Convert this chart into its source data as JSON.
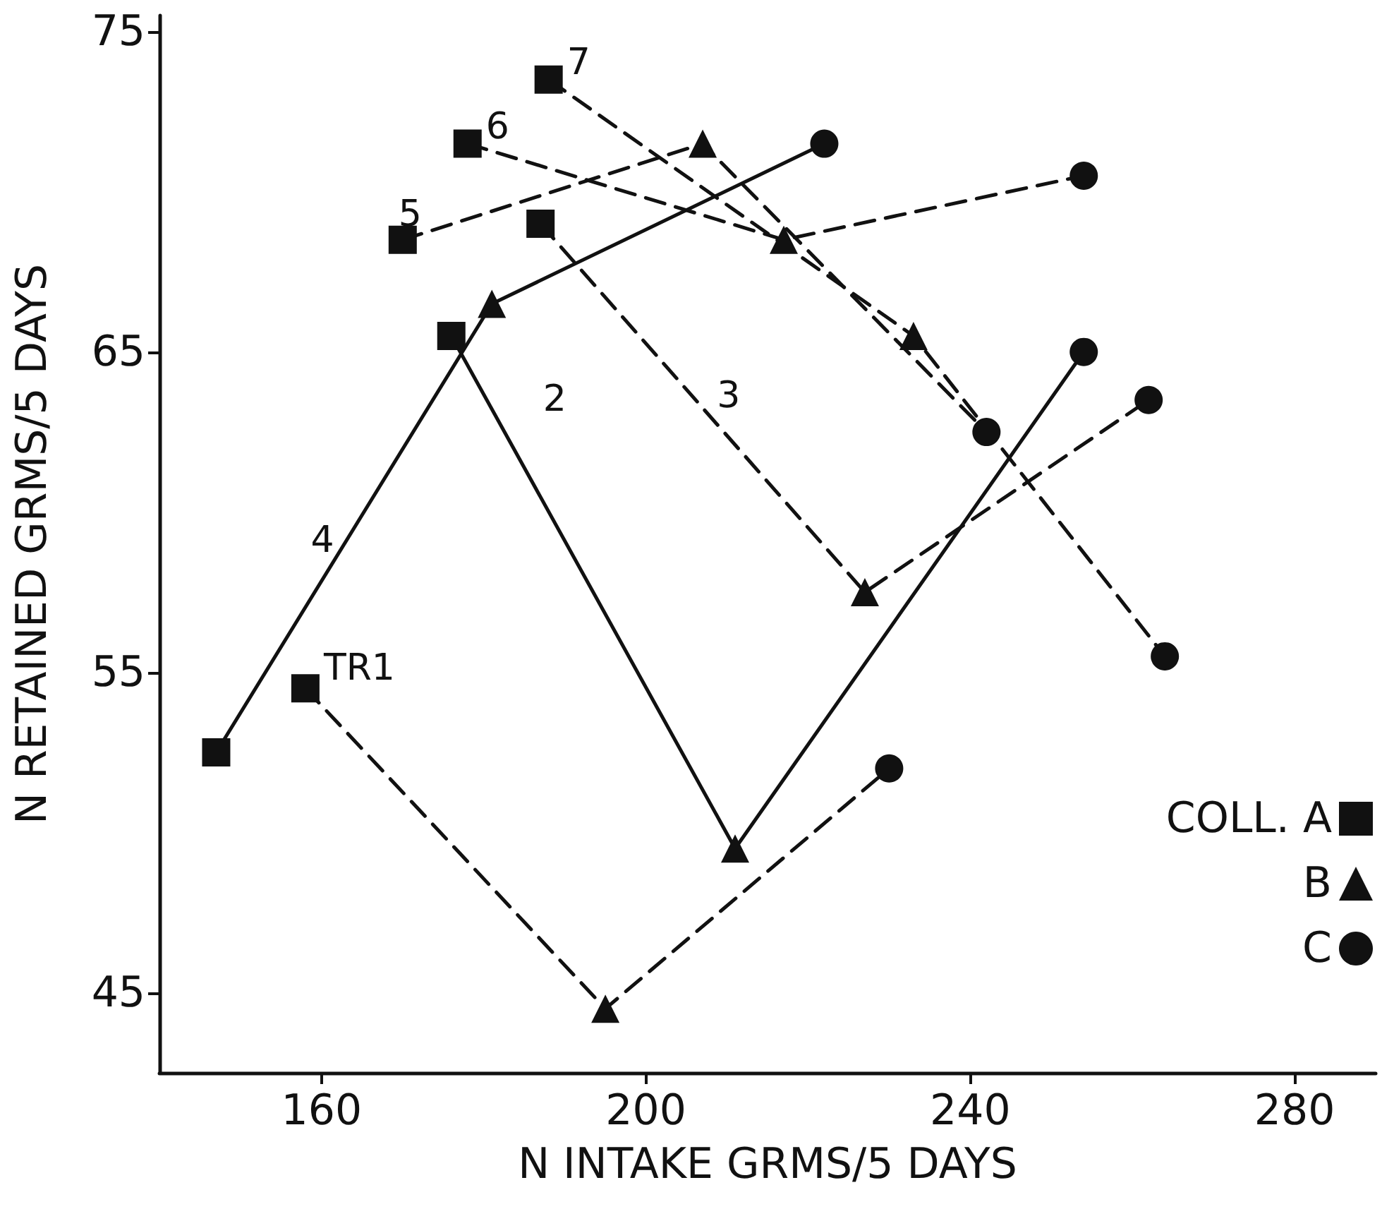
{
  "chart_data": {
    "type": "line",
    "xlabel": "N INTAKE GRMS/5 DAYS",
    "ylabel": "N RETAINED GRMS/5 DAYS",
    "xlim": [
      140,
      290
    ],
    "xticks": [
      160,
      200,
      240,
      280
    ],
    "ylim": [
      42.5,
      75.5
    ],
    "yticks": [
      45,
      55,
      65,
      75
    ],
    "grid": false,
    "legend": "right",
    "series": [
      {
        "name": "TR1",
        "color": "#111111",
        "marker": "none",
        "line_style": "dashed",
        "x": [
          158,
          195,
          230
        ],
        "values": [
          54.5,
          44.5,
          52
        ]
      },
      {
        "name": "2",
        "color": "#111111",
        "marker": "none",
        "line_style": "solid",
        "x": [
          176,
          211,
          254
        ],
        "values": [
          65.5,
          49.5,
          65
        ]
      },
      {
        "name": "3",
        "color": "#111111",
        "marker": "none",
        "line_style": "dashed",
        "x": [
          187,
          227,
          262
        ],
        "values": [
          69,
          57.5,
          63.5
        ]
      },
      {
        "name": "4",
        "color": "#111111",
        "marker": "none",
        "line_style": "solid",
        "x": [
          147,
          181,
          222
        ],
        "values": [
          52.5,
          66.5,
          71.5
        ]
      },
      {
        "name": "5",
        "color": "#111111",
        "marker": "none",
        "line_style": "dashed",
        "x": [
          170,
          207,
          242
        ],
        "values": [
          68.5,
          71.5,
          62.5
        ]
      },
      {
        "name": "6",
        "color": "#111111",
        "marker": "none",
        "line_style": "dashed",
        "x": [
          178,
          217,
          254
        ],
        "values": [
          71.5,
          68.5,
          70.5
        ]
      },
      {
        "name": "7",
        "color": "#111111",
        "marker": "none",
        "line_style": "dashed",
        "x": [
          188,
          233,
          264
        ],
        "values": [
          73.5,
          65.5,
          55.5
        ]
      },
      {
        "name": "COLL. A",
        "type": "scatter",
        "color": "#111111",
        "marker": "square",
        "x": [
          158,
          176,
          187,
          147,
          170,
          178,
          188
        ],
        "values": [
          54.5,
          65.5,
          69,
          52.5,
          68.5,
          71.5,
          73.5
        ]
      },
      {
        "name": "B",
        "type": "scatter",
        "color": "#111111",
        "marker": "triangle",
        "x": [
          195,
          211,
          227,
          181,
          207,
          217,
          233
        ],
        "values": [
          44.5,
          49.5,
          57.5,
          66.5,
          71.5,
          68.5,
          65.5
        ]
      },
      {
        "name": "C",
        "type": "scatter",
        "color": "#111111",
        "marker": "circle",
        "x": [
          230,
          254,
          262,
          222,
          242,
          254,
          264
        ],
        "values": [
          52,
          65,
          63.5,
          71.5,
          62.5,
          70.5,
          55.5
        ]
      }
    ]
  }
}
